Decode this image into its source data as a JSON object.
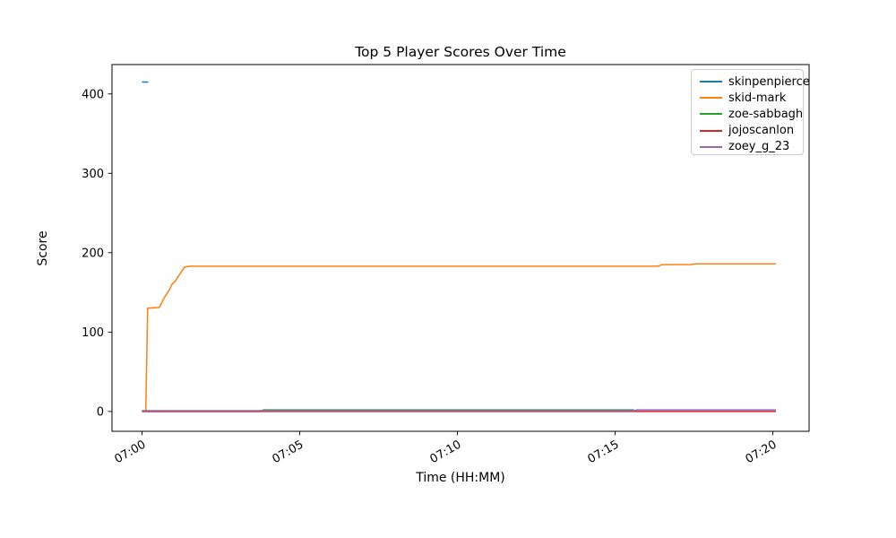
{
  "figure": {
    "background_color": "#ffffff",
    "axes_edge_color": "#000000",
    "legend_border_color": "#cccccc"
  },
  "chart_data": {
    "type": "line",
    "title": "Top 5 Player Scores Over Time",
    "xlabel": "Time (HH:MM)",
    "ylabel": "Score",
    "grid": false,
    "legend_position": "upper right",
    "x_unit": "minutes after 07:00",
    "xlim": [
      -0.95,
      21.15
    ],
    "ylim": [
      -25,
      437
    ],
    "x_ticks": [
      {
        "value": 0,
        "label": "07:00"
      },
      {
        "value": 5,
        "label": "07:05"
      },
      {
        "value": 10,
        "label": "07:10"
      },
      {
        "value": 15,
        "label": "07:15"
      },
      {
        "value": 20,
        "label": "07:20"
      }
    ],
    "y_ticks": [
      {
        "value": 0,
        "label": "0"
      },
      {
        "value": 100,
        "label": "100"
      },
      {
        "value": 200,
        "label": "200"
      },
      {
        "value": 300,
        "label": "300"
      },
      {
        "value": 400,
        "label": "400"
      }
    ],
    "series": [
      {
        "name": "skinpenpierce",
        "color": "#1f77b4",
        "points": [
          [
            0.0,
            415
          ],
          [
            0.2,
            415
          ]
        ]
      },
      {
        "name": "skid-mark",
        "color": "#ff7f0e",
        "points": [
          [
            0.12,
            0
          ],
          [
            0.18,
            130
          ],
          [
            0.55,
            131
          ],
          [
            0.7,
            143
          ],
          [
            0.85,
            152
          ],
          [
            0.95,
            160
          ],
          [
            1.05,
            164
          ],
          [
            1.15,
            170
          ],
          [
            1.25,
            176
          ],
          [
            1.35,
            182
          ],
          [
            1.55,
            183
          ],
          [
            16.35,
            183
          ],
          [
            16.5,
            185
          ],
          [
            17.4,
            185
          ],
          [
            17.55,
            186
          ],
          [
            20.1,
            186
          ]
        ]
      },
      {
        "name": "zoe-sabbagh",
        "color": "#2ca02c",
        "points": [
          [
            0.0,
            0
          ],
          [
            3.75,
            0
          ],
          [
            3.85,
            2
          ],
          [
            15.6,
            2
          ]
        ]
      },
      {
        "name": "jojoscanlon",
        "color": "#d62728",
        "points": [
          [
            0.0,
            0
          ],
          [
            20.1,
            0
          ]
        ]
      },
      {
        "name": "zoey_g_23",
        "color": "#9467bd",
        "points": [
          [
            0.0,
            1
          ],
          [
            15.6,
            1
          ],
          [
            15.7,
            2
          ],
          [
            20.1,
            2
          ]
        ]
      }
    ]
  }
}
